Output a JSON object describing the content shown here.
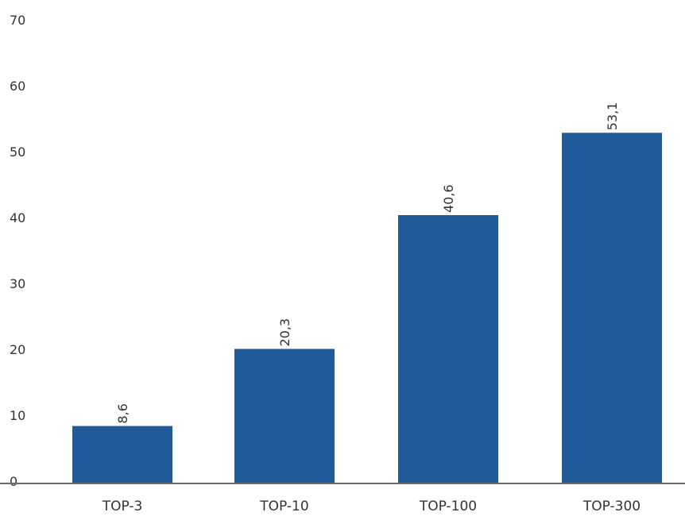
{
  "chart_data": {
    "type": "bar",
    "categories": [
      "TOP-3",
      "TOP-10",
      "TOP-100",
      "TOP-300"
    ],
    "values": [
      8.6,
      20.3,
      40.6,
      53.1
    ],
    "data_labels": [
      "8,6",
      "20,3",
      "40,6",
      "53,1"
    ],
    "ylim": [
      0,
      70
    ],
    "yticks": [
      0,
      10,
      20,
      30,
      40,
      50,
      60,
      70
    ],
    "grid": false,
    "bar_color": "#1f5a9a",
    "axis_color": "#6b6b6b"
  }
}
